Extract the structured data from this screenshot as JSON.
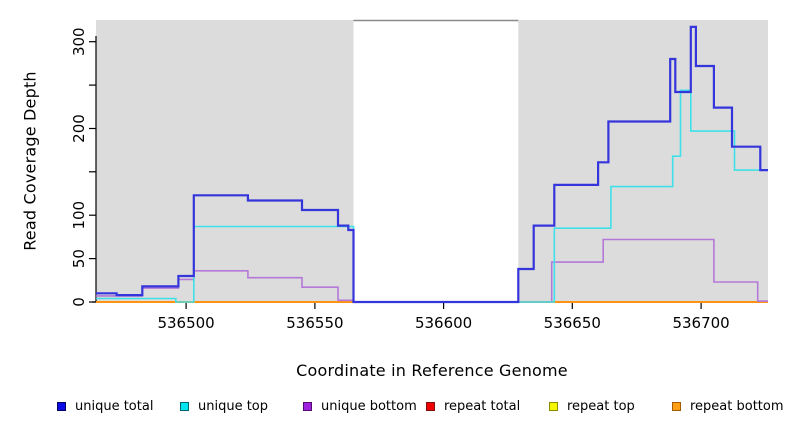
{
  "figure": {
    "x_axis_title": "Coordinate in Reference Genome",
    "y_axis_title": "Read Coverage Depth"
  },
  "chart_data": {
    "type": "line",
    "subtype": "step-after-coverage-plot",
    "title": "",
    "xlabel": "Coordinate in Reference Genome",
    "ylabel": "Read Coverage Depth",
    "x_range": [
      536465,
      536726
    ],
    "y_range": [
      0,
      325
    ],
    "x_ticks": [
      536500,
      536550,
      536600,
      536650,
      536700
    ],
    "y_ticks": [
      0,
      50,
      100,
      150,
      200,
      250,
      300
    ],
    "y_tick_labels": [
      "0",
      "50",
      "100",
      "",
      "200",
      "",
      "300"
    ],
    "grid": false,
    "background": "#FFFFFF",
    "band_color": "#DCDCDC",
    "axis_color": "#000000",
    "gap_line_color": "#8A8A8A",
    "shaded_regions": [
      [
        536465,
        536565
      ],
      [
        536629,
        536726
      ]
    ],
    "gap_top_line": [
      536565,
      536629
    ],
    "series": [
      {
        "name": "repeat total",
        "color": "#CC0000",
        "width": 1.6,
        "points": [
          [
            536465,
            0
          ]
        ]
      },
      {
        "name": "repeat top",
        "color": "#F0F000",
        "width": 1.6,
        "points": [
          [
            536465,
            0
          ]
        ]
      },
      {
        "name": "repeat bottom",
        "color": "#FF9414",
        "width": 2,
        "points": [
          [
            536465,
            0
          ]
        ]
      },
      {
        "name": "unique bottom",
        "color": "#B478D8",
        "width": 1.6,
        "points": [
          [
            536465,
            7
          ],
          [
            536483,
            16
          ],
          [
            536497,
            26
          ],
          [
            536503,
            36
          ],
          [
            536524,
            28
          ],
          [
            536545,
            17
          ],
          [
            536559,
            2
          ],
          [
            536565,
            0
          ],
          [
            536642,
            46
          ],
          [
            536662,
            72
          ],
          [
            536705,
            23
          ],
          [
            536722,
            1
          ]
        ]
      },
      {
        "name": "unique top",
        "color": "#3FE0E8",
        "width": 1.6,
        "points": [
          [
            536465,
            4
          ],
          [
            536496,
            0
          ],
          [
            536503,
            87
          ],
          [
            536565,
            0
          ],
          [
            536643,
            85
          ],
          [
            536665,
            133
          ],
          [
            536689,
            168
          ],
          [
            536692,
            244
          ],
          [
            536696,
            197
          ],
          [
            536713,
            152
          ]
        ]
      },
      {
        "name": "unique total",
        "color": "#3535DC",
        "width": 2.2,
        "points": [
          [
            536465,
            10
          ],
          [
            536473,
            8
          ],
          [
            536483,
            18
          ],
          [
            536497,
            30
          ],
          [
            536503,
            123
          ],
          [
            536524,
            117
          ],
          [
            536545,
            106
          ],
          [
            536559,
            88
          ],
          [
            536563,
            83
          ],
          [
            536565,
            0
          ],
          [
            536629,
            38
          ],
          [
            536635,
            88
          ],
          [
            536643,
            135
          ],
          [
            536660,
            161
          ],
          [
            536664,
            208
          ],
          [
            536688,
            280
          ],
          [
            536690,
            242
          ],
          [
            536696,
            317
          ],
          [
            536698,
            272
          ],
          [
            536705,
            224
          ],
          [
            536712,
            179
          ],
          [
            536723,
            152
          ]
        ]
      }
    ],
    "legend_position": "bottom"
  },
  "legend": {
    "items": [
      {
        "label": "unique total",
        "fill": "#0A0AE6",
        "border": "#000060"
      },
      {
        "label": "unique top",
        "fill": "#00E5EE",
        "border": "#00666B"
      },
      {
        "label": "unique bottom",
        "fill": "#A020E0",
        "border": "#500A70"
      },
      {
        "label": "repeat total",
        "fill": "#EE0000",
        "border": "#801010"
      },
      {
        "label": "repeat top",
        "fill": "#F5F500",
        "border": "#8B8B00"
      },
      {
        "label": "repeat bottom",
        "fill": "#FFA014",
        "border": "#A05A00"
      }
    ]
  }
}
